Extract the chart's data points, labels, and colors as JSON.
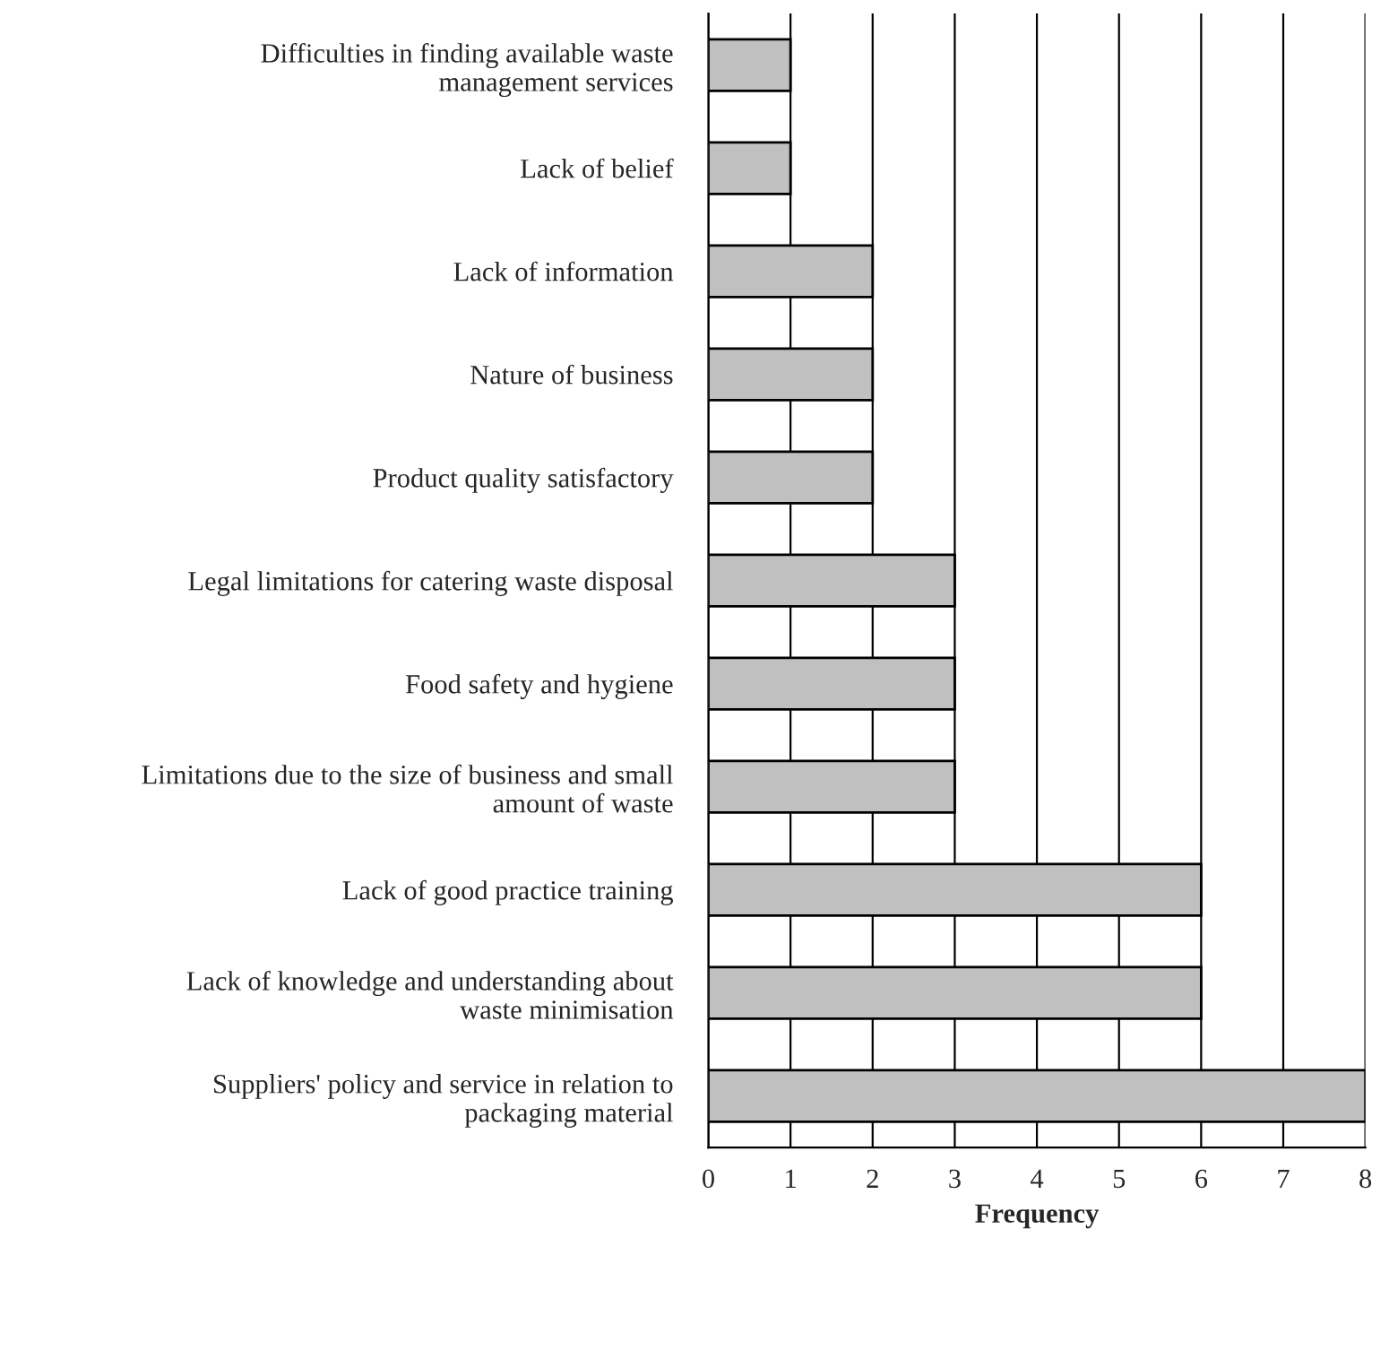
{
  "chart_data": {
    "type": "bar",
    "orientation": "horizontal",
    "xlabel": "Frequency",
    "categories": [
      "Difficulties in finding available waste\nmanagement services",
      "Lack of belief",
      "Lack of information",
      "Nature of business",
      "Product quality satisfactory",
      "Legal limitations for catering waste disposal",
      "Food safety and hygiene",
      "Limitations due to the size of business and small\namount of waste",
      "Lack of good practice training",
      "Lack of knowledge and understanding about\nwaste minimisation",
      "Suppliers' policy and service in relation to\npackaging material"
    ],
    "values": [
      1,
      1,
      2,
      2,
      2,
      3,
      3,
      3,
      6,
      6,
      8
    ],
    "color": "#c0c0c0",
    "xlim": [
      0,
      8
    ],
    "xticks": [
      0,
      1,
      2,
      3,
      4,
      5,
      6,
      7,
      8
    ],
    "grid": "x",
    "legend": false
  }
}
